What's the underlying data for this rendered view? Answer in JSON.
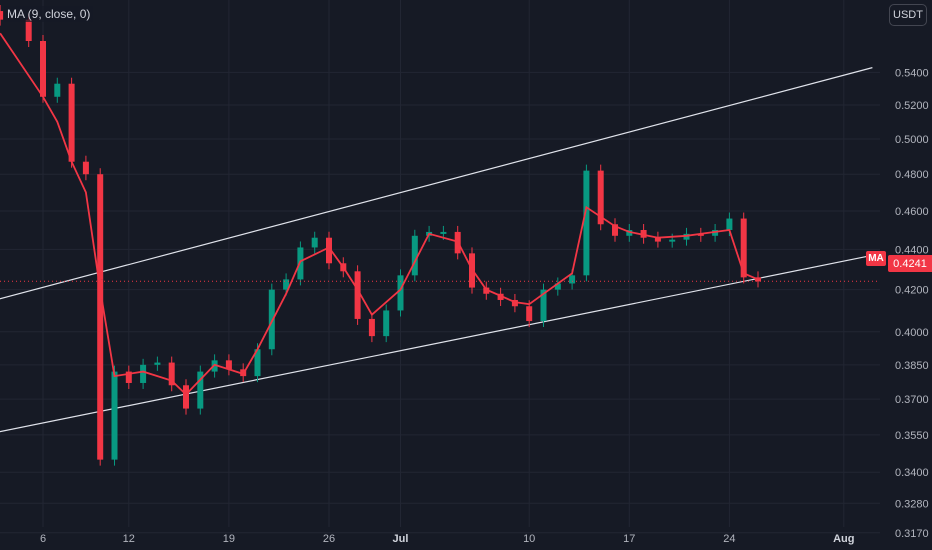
{
  "legend": {
    "ma_label": "MA (9, close, 0)"
  },
  "currency": "USDT",
  "last_price_label": "0.4241",
  "ma_tag_label": "MA",
  "colors": {
    "background": "#161a25",
    "up": "#089981",
    "down": "#f23645",
    "ma": "#f23645",
    "trendline": "#e0e3eb",
    "grid": "#222633"
  },
  "chart_data": {
    "type": "candlestick",
    "y_axis_ticks": [
      "0.5400",
      "0.5200",
      "0.5000",
      "0.4800",
      "0.4600",
      "0.4400",
      "0.4200",
      "0.4000",
      "0.3850",
      "0.3700",
      "0.3550",
      "0.3400",
      "0.3280",
      "0.3170"
    ],
    "x_axis_ticks": [
      "6",
      "12",
      "19",
      "26",
      "Jul",
      "10",
      "17",
      "24",
      "Aug"
    ],
    "ylim": [
      0.314,
      0.56
    ],
    "scale": "log",
    "current_price": 0.4241,
    "series": [
      {
        "name": "MA (9, close, 0)",
        "style": "line",
        "points": [
          {
            "x": "Jun 3",
            "y": 0.565
          },
          {
            "x": "Jun 6",
            "y": 0.525
          },
          {
            "x": "Jun 7",
            "y": 0.51
          },
          {
            "x": "Jun 8",
            "y": 0.487
          },
          {
            "x": "Jun 9",
            "y": 0.47
          },
          {
            "x": "Jun 10",
            "y": 0.42
          },
          {
            "x": "Jun 11",
            "y": 0.38
          },
          {
            "x": "Jun 13",
            "y": 0.382
          },
          {
            "x": "Jun 15",
            "y": 0.378
          },
          {
            "x": "Jun 16",
            "y": 0.372
          },
          {
            "x": "Jun 18",
            "y": 0.385
          },
          {
            "x": "Jun 20",
            "y": 0.381
          },
          {
            "x": "Jun 21",
            "y": 0.392
          },
          {
            "x": "Jun 23",
            "y": 0.418
          },
          {
            "x": "Jun 24",
            "y": 0.434
          },
          {
            "x": "Jun 26",
            "y": 0.441
          },
          {
            "x": "Jun 27",
            "y": 0.431
          },
          {
            "x": "Jun 28",
            "y": 0.42
          },
          {
            "x": "Jun 29",
            "y": 0.408
          },
          {
            "x": "Jul 1",
            "y": 0.42
          },
          {
            "x": "Jul 3",
            "y": 0.448
          },
          {
            "x": "Jul 5",
            "y": 0.444
          },
          {
            "x": "Jul 6",
            "y": 0.43
          },
          {
            "x": "Jul 7",
            "y": 0.42
          },
          {
            "x": "Jul 9",
            "y": 0.414
          },
          {
            "x": "Jul 10",
            "y": 0.413
          },
          {
            "x": "Jul 11",
            "y": 0.418
          },
          {
            "x": "Jul 13",
            "y": 0.428
          },
          {
            "x": "Jul 14",
            "y": 0.462
          },
          {
            "x": "Jul 16",
            "y": 0.452
          },
          {
            "x": "Jul 17",
            "y": 0.449
          },
          {
            "x": "Jul 19",
            "y": 0.446
          },
          {
            "x": "Jul 21",
            "y": 0.447
          },
          {
            "x": "Jul 23",
            "y": 0.449
          },
          {
            "x": "Jul 24",
            "y": 0.45
          },
          {
            "x": "Jul 25",
            "y": 0.428
          },
          {
            "x": "Jul 26",
            "y": 0.425
          }
        ]
      },
      {
        "name": "",
        "style": "candles",
        "points": [
          {
            "x": "Jun 3",
            "y": 0.574
          },
          {
            "x": "Jun 5",
            "y": 0.56
          },
          {
            "x": "Jun 6",
            "y": 0.525
          },
          {
            "x": "Jun 7",
            "y": 0.533
          },
          {
            "x": "Jun 8",
            "y": 0.487
          },
          {
            "x": "Jun 9",
            "y": 0.48
          },
          {
            "x": "Jun 10",
            "y": 0.425
          },
          {
            "x": "Jun 10",
            "y": 0.345
          },
          {
            "x": "Jun 11",
            "y": 0.382
          },
          {
            "x": "Jun 12",
            "y": 0.377
          },
          {
            "x": "Jun 13",
            "y": 0.385
          },
          {
            "x": "Jun 14",
            "y": 0.386
          },
          {
            "x": "Jun 15",
            "y": 0.376
          },
          {
            "x": "Jun 16",
            "y": 0.366
          },
          {
            "x": "Jun 17",
            "y": 0.382
          },
          {
            "x": "Jun 18",
            "y": 0.387
          },
          {
            "x": "Jun 19",
            "y": 0.383
          },
          {
            "x": "Jun 20",
            "y": 0.38
          },
          {
            "x": "Jun 21",
            "y": 0.392
          },
          {
            "x": "Jun 22",
            "y": 0.42
          },
          {
            "x": "Jun 23",
            "y": 0.425
          },
          {
            "x": "Jun 24",
            "y": 0.441
          },
          {
            "x": "Jun 25",
            "y": 0.446
          },
          {
            "x": "Jun 26",
            "y": 0.433
          },
          {
            "x": "Jun 27",
            "y": 0.429
          },
          {
            "x": "Jun 28",
            "y": 0.406
          },
          {
            "x": "Jun 29",
            "y": 0.398
          },
          {
            "x": "Jun 30",
            "y": 0.41
          },
          {
            "x": "Jul 1",
            "y": 0.427
          },
          {
            "x": "Jul 2",
            "y": 0.447
          },
          {
            "x": "Jul 3",
            "y": 0.449
          },
          {
            "x": "Jul 4",
            "y": 0.449
          },
          {
            "x": "Jul 5",
            "y": 0.438
          },
          {
            "x": "Jul 6",
            "y": 0.421
          },
          {
            "x": "Jul 7",
            "y": 0.418
          },
          {
            "x": "Jul 8",
            "y": 0.415
          },
          {
            "x": "Jul 9",
            "y": 0.412
          },
          {
            "x": "Jul 10",
            "y": 0.405
          },
          {
            "x": "Jul 11",
            "y": 0.42
          },
          {
            "x": "Jul 12",
            "y": 0.423
          },
          {
            "x": "Jul 13",
            "y": 0.427
          },
          {
            "x": "Jul 14",
            "y": 0.482
          },
          {
            "x": "Jul 15",
            "y": 0.453
          },
          {
            "x": "Jul 16",
            "y": 0.447
          },
          {
            "x": "Jul 17",
            "y": 0.45
          },
          {
            "x": "Jul 18",
            "y": 0.446
          },
          {
            "x": "Jul 19",
            "y": 0.444
          },
          {
            "x": "Jul 20",
            "y": 0.445
          },
          {
            "x": "Jul 21",
            "y": 0.448
          },
          {
            "x": "Jul 22",
            "y": 0.447
          },
          {
            "x": "Jul 23",
            "y": 0.45
          },
          {
            "x": "Jul 24",
            "y": 0.456
          },
          {
            "x": "Jul 25",
            "y": 0.426
          },
          {
            "x": "Jul 26",
            "y": 0.424
          }
        ]
      },
      {
        "name": "",
        "style": "trendline",
        "points": [
          {
            "x": "Jun 1",
            "y": 0.412
          },
          {
            "x": "Aug 3",
            "y": 0.543
          }
        ]
      },
      {
        "name": "",
        "style": "trendline",
        "points": [
          {
            "x": "Jun 1",
            "y": 0.354
          },
          {
            "x": "Aug 3",
            "y": 0.437
          }
        ]
      }
    ],
    "grid": true,
    "legend_position": "top-left"
  }
}
